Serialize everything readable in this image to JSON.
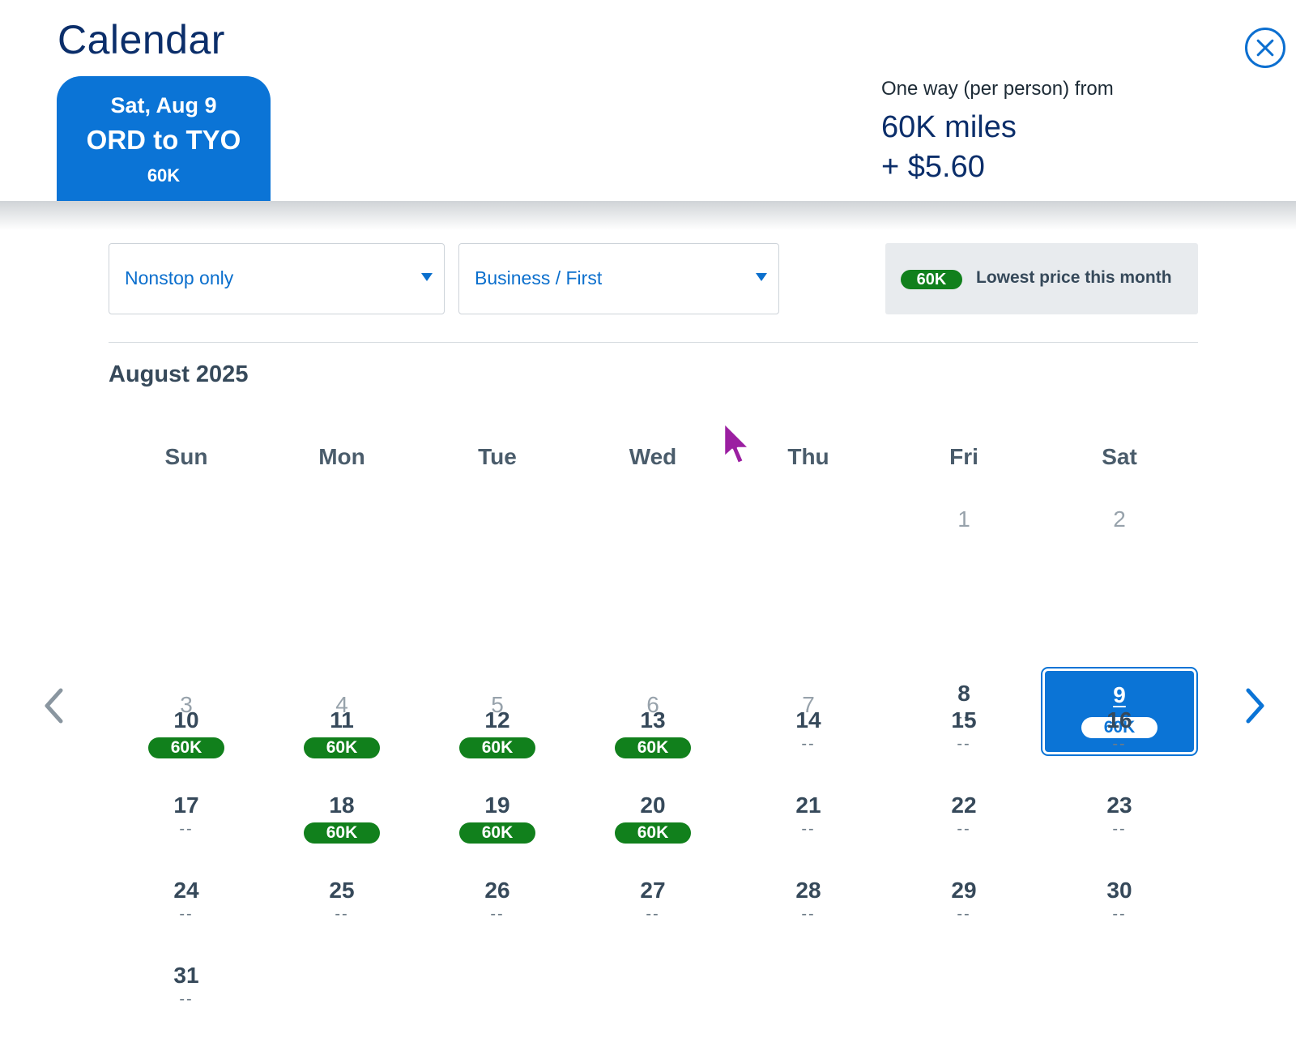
{
  "header": {
    "title": "Calendar",
    "close_icon": "close-icon",
    "trip": {
      "date": "Sat, Aug 9",
      "route": "ORD to TYO",
      "price": "60K"
    },
    "fare": {
      "label": "One way (per person) from",
      "miles": "60K miles",
      "cash": "+ $5.60"
    }
  },
  "filters": {
    "stops": {
      "value": "Nonstop only"
    },
    "cabin": {
      "value": "Business / First"
    },
    "legend": {
      "pill": "60K",
      "text": "Lowest price this month"
    }
  },
  "calendar": {
    "month": "August 2025",
    "weekdays": [
      "Sun",
      "Mon",
      "Tue",
      "Wed",
      "Thu",
      "Fri",
      "Sat"
    ],
    "days": [
      {
        "day": "1",
        "price": ""
      },
      {
        "day": "2",
        "price": ""
      },
      {
        "day": "3",
        "price": ""
      },
      {
        "day": "4",
        "price": ""
      },
      {
        "day": "5",
        "price": ""
      },
      {
        "day": "6",
        "price": ""
      },
      {
        "day": "7",
        "price": ""
      },
      {
        "day": "8",
        "price": "--"
      },
      {
        "day": "9",
        "price": "60K"
      },
      {
        "day": "10",
        "price": "60K"
      },
      {
        "day": "11",
        "price": "60K"
      },
      {
        "day": "12",
        "price": "60K"
      },
      {
        "day": "13",
        "price": "60K"
      },
      {
        "day": "14",
        "price": "--"
      },
      {
        "day": "15",
        "price": "--"
      },
      {
        "day": "16",
        "price": "--"
      },
      {
        "day": "17",
        "price": "--"
      },
      {
        "day": "18",
        "price": "60K"
      },
      {
        "day": "19",
        "price": "60K"
      },
      {
        "day": "20",
        "price": "60K"
      },
      {
        "day": "21",
        "price": "--"
      },
      {
        "day": "22",
        "price": "--"
      },
      {
        "day": "23",
        "price": "--"
      },
      {
        "day": "24",
        "price": "--"
      },
      {
        "day": "25",
        "price": "--"
      },
      {
        "day": "26",
        "price": "--"
      },
      {
        "day": "27",
        "price": "--"
      },
      {
        "day": "28",
        "price": "--"
      },
      {
        "day": "29",
        "price": "--"
      },
      {
        "day": "30",
        "price": "--"
      },
      {
        "day": "31",
        "price": "--"
      }
    ],
    "selected_day": "9",
    "prev_icon": "chevron-left-icon",
    "next_icon": "chevron-right-icon"
  },
  "colors": {
    "primary": "#0b74d6",
    "navy": "#0b2e6a",
    "price_green": "#11801c",
    "text": "#36495a"
  }
}
